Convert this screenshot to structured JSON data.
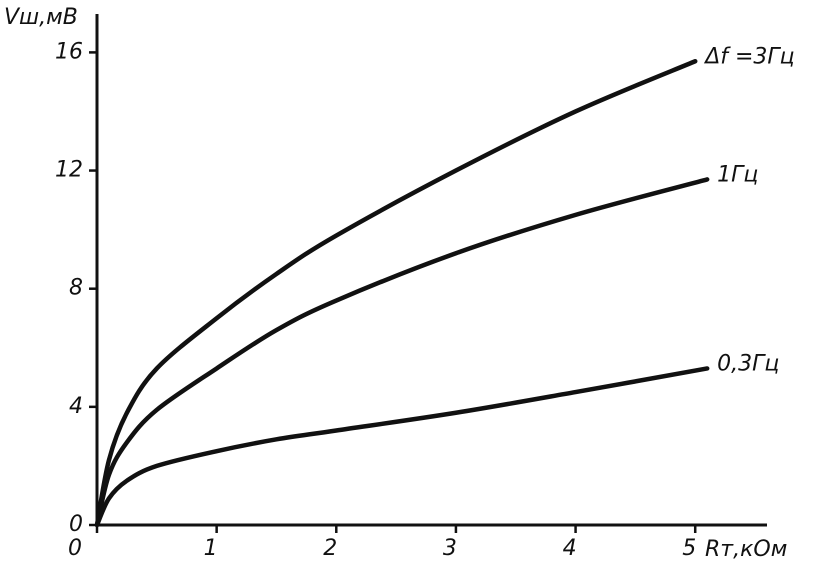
{
  "chart_data": {
    "type": "line",
    "y_label": "Vш,мВ",
    "x_label": "Rт,кОм",
    "xlim": [
      0,
      5.6
    ],
    "xticks": [
      0,
      1,
      2,
      3,
      4,
      5
    ],
    "ylim": [
      0,
      17.3
    ],
    "yticks": [
      0,
      4,
      8,
      12,
      16
    ],
    "color": "#111111",
    "series": [
      {
        "name": "Δf =3Гц",
        "color": "#111111",
        "x": [
          0,
          0.1,
          0.25,
          0.5,
          1,
          1.5,
          2,
          3,
          4,
          5
        ],
        "values": [
          0,
          2.2,
          3.8,
          5.3,
          7.0,
          8.5,
          9.8,
          12.0,
          14.0,
          15.7
        ]
      },
      {
        "name": "1Гц",
        "color": "#111111",
        "x": [
          0,
          0.1,
          0.25,
          0.5,
          1,
          1.5,
          2,
          3,
          4,
          5.1
        ],
        "values": [
          0,
          1.7,
          2.8,
          3.9,
          5.3,
          6.6,
          7.6,
          9.2,
          10.5,
          11.7
        ]
      },
      {
        "name": "0,3Гц",
        "color": "#111111",
        "x": [
          0,
          0.1,
          0.25,
          0.5,
          1,
          1.5,
          2,
          3,
          4,
          5.1
        ],
        "values": [
          0,
          0.9,
          1.5,
          2.0,
          2.5,
          2.9,
          3.2,
          3.8,
          4.5,
          5.3
        ]
      }
    ]
  }
}
